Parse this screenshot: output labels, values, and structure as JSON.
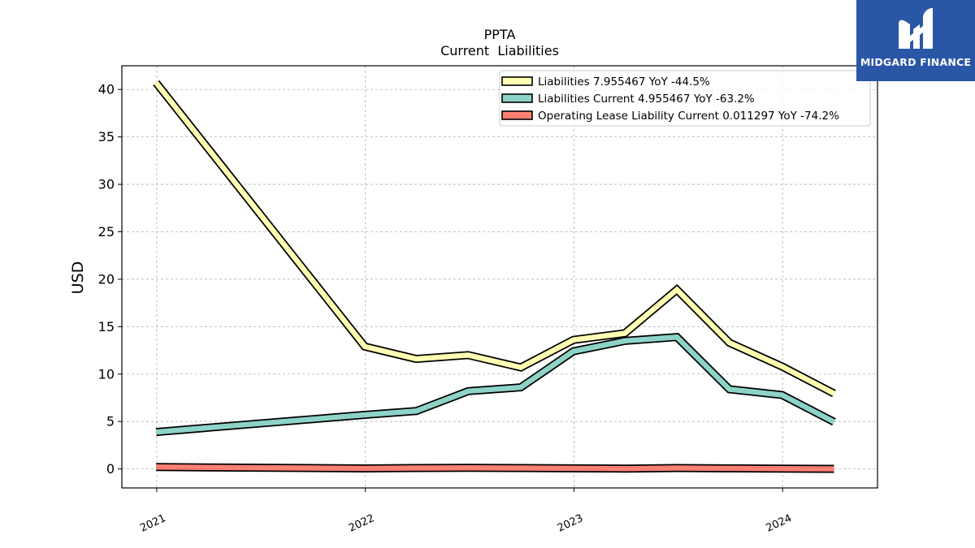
{
  "brand": {
    "name": "MIDGARD FINANCE",
    "color": "#2a56a6",
    "icon": "midgard-m-logo-icon"
  },
  "chart_data": {
    "type": "line",
    "title": "PPTA",
    "subtitle": "Current  Liabilities",
    "xlabel": "",
    "ylabel": "USD",
    "x_ticks": [
      "2021",
      "2022",
      "2023",
      "2024"
    ],
    "x_range": [
      "2020-11-01",
      "2024-06-15"
    ],
    "ylim": [
      -2,
      42.5
    ],
    "y_ticks": [
      0,
      5,
      10,
      15,
      20,
      25,
      30,
      35,
      40
    ],
    "grid": true,
    "legend_position": "top-right",
    "x": [
      "2020-12-31",
      "2021-12-31",
      "2022-03-31",
      "2022-06-30",
      "2022-09-30",
      "2022-12-31",
      "2023-03-31",
      "2023-06-30",
      "2023-09-30",
      "2023-12-31",
      "2024-03-31"
    ],
    "series": [
      {
        "name": "Liabilities",
        "legend": "Liabilities  7.955467 YoY -44.5%",
        "color": "#ffffb3",
        "values": [
          40.7,
          12.9,
          11.6,
          12.0,
          10.7,
          13.6,
          14.3,
          18.9,
          13.3,
          10.8,
          7.955467
        ]
      },
      {
        "name": "Liabilities Current",
        "legend": "Liabilities Current  4.955467 YoY -63.2%",
        "color": "#8dd3c7",
        "values": [
          3.9,
          5.7,
          6.1,
          8.2,
          8.6,
          12.4,
          13.5,
          13.9,
          8.4,
          7.8,
          4.955467
        ]
      },
      {
        "name": "Operating Lease Liability Current",
        "legend": "Operating Lease Liability Current  0.011297 YoY -74.2%",
        "color": "#fb8072",
        "values": [
          0.2,
          0.05,
          0.1,
          0.12,
          0.1,
          0.06,
          0.04,
          0.1,
          0.06,
          0.04,
          0.011297
        ]
      }
    ]
  }
}
